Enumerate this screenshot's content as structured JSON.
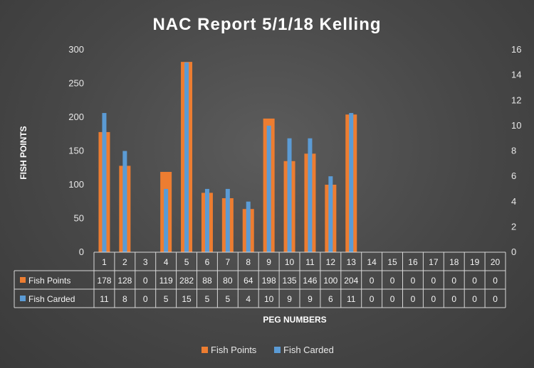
{
  "chart_data": {
    "type": "bar",
    "title": "NAC Report 5/1/18 Kelling",
    "xlabel": "PEG NUMBERS",
    "ylabel": "FISH POINTS",
    "ylim": [
      0,
      300
    ],
    "y2lim": [
      0,
      16
    ],
    "yticks": [
      0,
      50,
      100,
      150,
      200,
      250,
      300
    ],
    "y2ticks": [
      0,
      2,
      4,
      6,
      8,
      10,
      12,
      14,
      16
    ],
    "categories": [
      "1",
      "2",
      "3",
      "4",
      "5",
      "6",
      "7",
      "8",
      "9",
      "10",
      "11",
      "12",
      "13",
      "14",
      "15",
      "16",
      "17",
      "18",
      "19",
      "20"
    ],
    "series": [
      {
        "name": "Fish Points",
        "axis": "left",
        "color": "#ed7d31",
        "values": [
          178,
          128,
          0,
          119,
          282,
          88,
          80,
          64,
          198,
          135,
          146,
          100,
          204,
          0,
          0,
          0,
          0,
          0,
          0,
          0
        ]
      },
      {
        "name": "Fish Carded",
        "axis": "right",
        "color": "#5b9bd5",
        "values": [
          11,
          8,
          0,
          5,
          15,
          5,
          5,
          4,
          10,
          9,
          9,
          6,
          11,
          0,
          0,
          0,
          0,
          0,
          0,
          0
        ]
      }
    ],
    "grid": false,
    "legend": "bottom",
    "data_table": true
  }
}
